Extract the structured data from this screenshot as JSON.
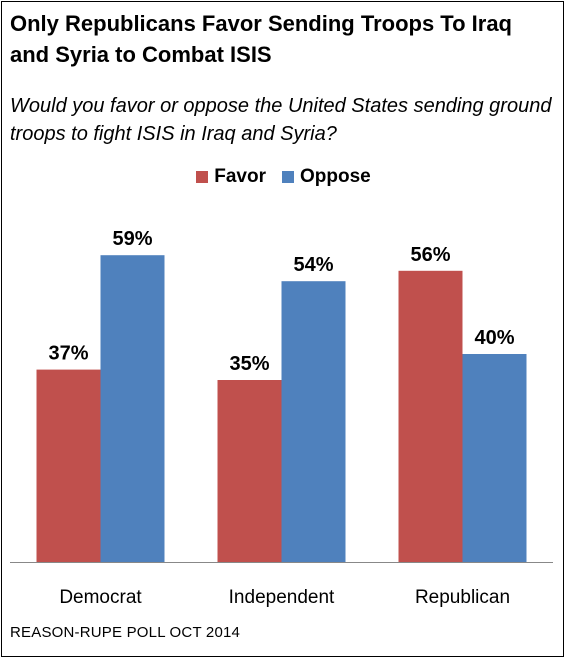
{
  "header": {
    "title": "Only Republicans Favor Sending Troops To Iraq and Syria to Combat ISIS",
    "subtitle": "Would you favor or oppose the United States sending ground troops to fight ISIS in Iraq and Syria?"
  },
  "footer": {
    "source": "REASON-RUPE POLL OCT 2014"
  },
  "colors": {
    "favor": "#c0504d",
    "oppose": "#4f81bd",
    "axis": "#888888"
  },
  "chart_data": {
    "type": "bar",
    "title": "Only Republicans Favor Sending Troops To Iraq and Syria to Combat ISIS",
    "subtitle": "Would you favor or oppose the United States sending ground troops to fight ISIS in Iraq and Syria?",
    "categories": [
      "Democrat",
      "Independent",
      "Republican"
    ],
    "series": [
      {
        "name": "Favor",
        "values": [
          37,
          35,
          56
        ],
        "labels": [
          "37%",
          "35%",
          "56%"
        ]
      },
      {
        "name": "Oppose",
        "values": [
          59,
          54,
          40
        ],
        "labels": [
          "59%",
          "54%",
          "40%"
        ]
      }
    ],
    "ylim": [
      0,
      70
    ],
    "grid": false,
    "legend_position": "top-center",
    "xlabel": "",
    "ylabel": ""
  }
}
